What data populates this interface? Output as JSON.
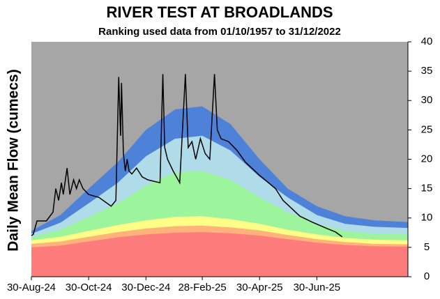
{
  "chart_data": {
    "type": "area",
    "title": "RIVER TEST AT BROADLANDS",
    "subtitle": "Ranking used data from 01/10/1957 to 31/12/2022",
    "y_label": "Daily Mean Flow (cumecs)",
    "stacked": true,
    "y_axis_side": "right",
    "xlim": [
      "2024-08-30",
      "2025-10-05"
    ],
    "xticks": [
      {
        "value": "2024-08-30",
        "label": "30-Aug-24"
      },
      {
        "value": "2024-10-30",
        "label": "30-Oct-24"
      },
      {
        "value": "2024-12-30",
        "label": "30-Dec-24"
      },
      {
        "value": "2025-02-28",
        "label": "28-Feb-25"
      },
      {
        "value": "2025-04-30",
        "label": "30-Apr-25"
      },
      {
        "value": "2025-06-30",
        "label": "30-Jun-25"
      }
    ],
    "ylim": [
      0,
      40
    ],
    "yticks": [
      0,
      5,
      10,
      15,
      20,
      25,
      30,
      35,
      40
    ],
    "x": [
      "2024-08-30",
      "2024-09-30",
      "2024-10-30",
      "2024-11-30",
      "2024-12-30",
      "2025-01-30",
      "2025-02-28",
      "2025-03-30",
      "2025-04-30",
      "2025-05-30",
      "2025-06-30",
      "2025-07-30",
      "2025-08-30",
      "2025-10-05"
    ],
    "series": [
      {
        "color": "#ff7c7c",
        "values": [
          5,
          5.3,
          6,
          6.7,
          7.2,
          7.5,
          7.6,
          7.4,
          7,
          6.4,
          5.8,
          5.4,
          5.2,
          5.1
        ]
      },
      {
        "color": "#ffb27a",
        "values": [
          0.6,
          0.7,
          0.8,
          0.9,
          1,
          1.1,
          1.1,
          1,
          0.9,
          0.7,
          0.6,
          0.5,
          0.4,
          0.4
        ]
      },
      {
        "color": "#ffff88",
        "values": [
          0.6,
          0.8,
          1,
          1.2,
          1.4,
          1.6,
          1.6,
          1.4,
          1.1,
          0.9,
          0.8,
          0.7,
          0.7,
          0.7
        ]
      },
      {
        "color": "#9cf59c",
        "values": [
          0.6,
          1.2,
          2.4,
          3.7,
          5.9,
          7.6,
          7.7,
          6.7,
          4.5,
          3,
          1.8,
          1.2,
          1,
          1
        ]
      },
      {
        "color": "#b0dcea",
        "values": [
          0.5,
          1.2,
          2.3,
          3.5,
          5,
          5.7,
          6,
          5,
          3.5,
          2.5,
          1.5,
          1.2,
          1.2,
          1.1
        ]
      },
      {
        "color": "#4d82d8",
        "values": [
          0.5,
          1.3,
          2.5,
          3.5,
          4.5,
          5,
          5,
          4.5,
          3,
          1.5,
          1.5,
          1.3,
          1.1,
          1
        ]
      },
      {
        "color": "#a6a6a6",
        "values": [
          32.2,
          29.5,
          25,
          20.5,
          15,
          11.5,
          11,
          14,
          20,
          25,
          28,
          29.7,
          30.4,
          30.7
        ]
      },
      {
        "type": "line",
        "color": "#000000",
        "x": [
          "2024-08-30",
          "2024-09-01",
          "2024-09-05",
          "2024-09-15",
          "2024-09-22",
          "2024-09-25",
          "2024-09-28",
          "2024-10-01",
          "2024-10-03",
          "2024-10-07",
          "2024-10-10",
          "2024-10-14",
          "2024-10-17",
          "2024-10-20",
          "2024-10-24",
          "2024-10-30",
          "2024-11-10",
          "2024-11-23",
          "2024-11-28",
          "2024-12-01",
          "2024-12-03",
          "2024-12-04",
          "2024-12-06",
          "2024-12-08",
          "2024-12-10",
          "2024-12-12",
          "2024-12-15",
          "2024-12-20",
          "2024-12-26",
          "2025-01-01",
          "2025-01-14",
          "2025-01-17",
          "2025-01-19",
          "2025-01-22",
          "2025-01-28",
          "2025-02-04",
          "2025-02-10",
          "2025-02-13",
          "2025-02-17",
          "2025-02-21",
          "2025-02-26",
          "2025-03-03",
          "2025-03-08",
          "2025-03-13",
          "2025-03-16",
          "2025-03-20",
          "2025-03-28",
          "2025-04-06",
          "2025-04-15",
          "2025-04-29",
          "2025-05-17",
          "2025-05-25",
          "2025-06-12",
          "2025-06-25",
          "2025-07-11",
          "2025-07-20",
          "2025-07-27"
        ],
        "values": [
          7,
          7.2,
          9.5,
          9.5,
          11,
          15,
          13,
          16,
          14,
          18.5,
          14,
          16.5,
          15,
          16.5,
          15,
          14,
          13.5,
          12,
          13,
          34,
          24,
          33,
          21,
          18,
          20,
          18,
          17.5,
          18.5,
          17,
          16.5,
          16,
          34.5,
          22,
          20,
          18,
          16,
          34.5,
          22,
          23,
          20,
          23.5,
          21,
          20,
          34.5,
          25,
          23.5,
          23,
          21.5,
          19.5,
          17.4,
          15,
          13,
          10.3,
          9.3,
          8.2,
          7.6,
          6.8
        ]
      }
    ]
  }
}
